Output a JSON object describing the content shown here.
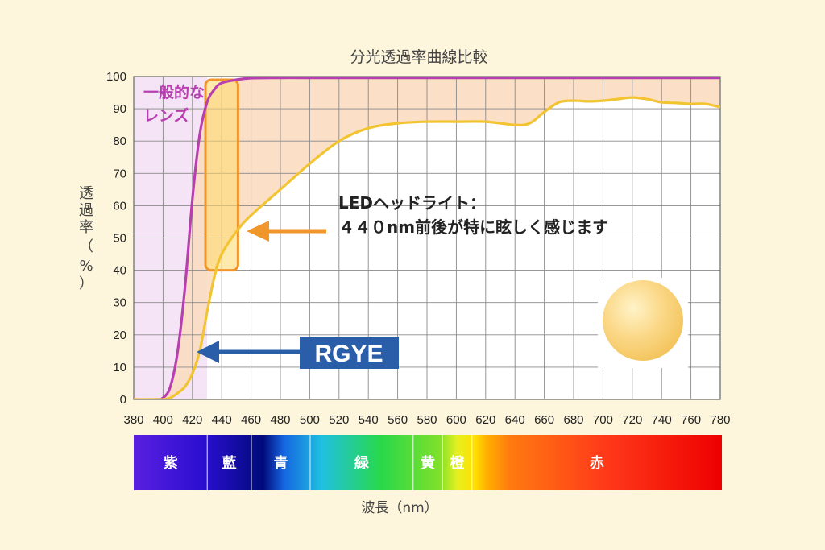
{
  "chart_data": {
    "type": "line",
    "title": "分光透過率曲線比較",
    "xlabel": "波長（nm）",
    "ylabel": "透過率（%）",
    "xlim": [
      380,
      780
    ],
    "ylim": [
      0,
      100
    ],
    "x_ticks": [
      380,
      400,
      420,
      440,
      460,
      480,
      500,
      520,
      540,
      560,
      580,
      600,
      620,
      640,
      660,
      680,
      700,
      720,
      740,
      760,
      780
    ],
    "y_ticks": [
      0,
      10,
      20,
      30,
      40,
      50,
      60,
      70,
      80,
      90,
      100
    ],
    "grid": true,
    "series": [
      {
        "name": "一般的なレンズ",
        "color": "#b83fb0",
        "x": [
          380,
          395,
          400,
          405,
          410,
          415,
          420,
          425,
          430,
          435,
          440,
          450,
          460,
          480,
          500,
          550,
          600,
          650,
          700,
          780
        ],
        "y": [
          0,
          0,
          0.5,
          4,
          15,
          35,
          62,
          82,
          92,
          96,
          98,
          99,
          99.5,
          99.6,
          99.6,
          99.6,
          99.6,
          99.6,
          99.6,
          99.6
        ]
      },
      {
        "name": "RGYE",
        "color": "#f2c431",
        "x": [
          380,
          395,
          400,
          405,
          410,
          415,
          420,
          425,
          430,
          435,
          440,
          450,
          460,
          480,
          500,
          520,
          540,
          560,
          580,
          600,
          620,
          640,
          650,
          660,
          670,
          680,
          690,
          700,
          710,
          720,
          730,
          740,
          750,
          760,
          770,
          780
        ],
        "y": [
          0,
          0,
          0,
          0.5,
          2,
          4,
          8,
          15,
          27,
          38,
          45,
          52,
          57,
          65,
          73,
          80,
          84,
          85.5,
          86,
          86,
          86,
          85,
          85.5,
          89,
          92,
          92.5,
          92.3,
          92.5,
          93,
          93.5,
          93,
          92,
          91.8,
          91.5,
          91.5,
          90.5
        ]
      }
    ],
    "annotations": {
      "lens_label": [
        "一般的な",
        "レンズ"
      ],
      "led_label": [
        "LEDヘッドライト：",
        "４４０nm前後が特に眩しく感じます"
      ],
      "rgye_label": "RGYE"
    },
    "highlight": {
      "x_range": [
        430,
        450
      ],
      "y_range": [
        40,
        99
      ]
    },
    "spectrum_bands": [
      {
        "label": "紫",
        "from": 380,
        "to": 430
      },
      {
        "label": "藍",
        "from": 430,
        "to": 460
      },
      {
        "label": "青",
        "from": 460,
        "to": 500
      },
      {
        "label": "緑",
        "from": 500,
        "to": 570
      },
      {
        "label": "黄",
        "from": 570,
        "to": 590
      },
      {
        "label": "橙",
        "from": 590,
        "to": 610
      },
      {
        "label": "赤",
        "from": 610,
        "to": 780
      }
    ]
  }
}
